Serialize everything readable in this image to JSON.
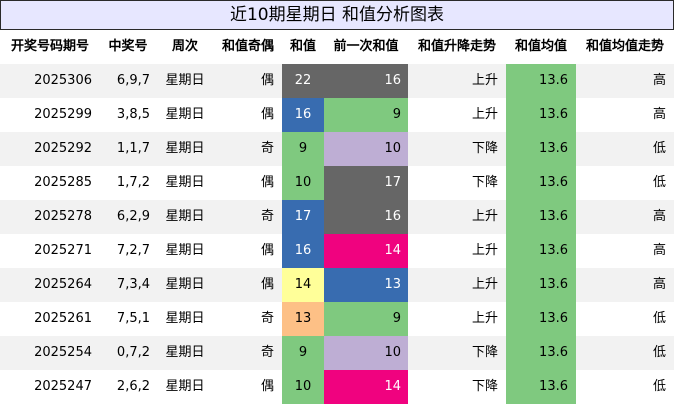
{
  "title": "近10期星期日 和值分析图表",
  "headers": [
    "开奖号码期号",
    "中奖号",
    "周次",
    "和值奇偶",
    "和值",
    "前一次和值",
    "和值升降走势",
    "和值均值",
    "和值均值走势"
  ],
  "rows": [
    {
      "issue": "2025306",
      "numbers": "6,9,7",
      "weekday": "星期日",
      "parity": "偶",
      "sum": "22",
      "sum_color": "#666666",
      "prev_sum": "16",
      "prev_color": "#666666",
      "trend": "上升",
      "avg": "13.6",
      "avg_trend": "高"
    },
    {
      "issue": "2025299",
      "numbers": "3,8,5",
      "weekday": "星期日",
      "parity": "偶",
      "sum": "16",
      "sum_color": "#386cb0",
      "prev_sum": "9",
      "prev_color": "#7fc97f",
      "trend": "上升",
      "avg": "13.6",
      "avg_trend": "高"
    },
    {
      "issue": "2025292",
      "numbers": "1,1,7",
      "weekday": "星期日",
      "parity": "奇",
      "sum": "9",
      "sum_color": "#7fc97f",
      "prev_sum": "10",
      "prev_color": "#beaed4",
      "trend": "下降",
      "avg": "13.6",
      "avg_trend": "低"
    },
    {
      "issue": "2025285",
      "numbers": "1,7,2",
      "weekday": "星期日",
      "parity": "偶",
      "sum": "10",
      "sum_color": "#7fc97f",
      "prev_sum": "17",
      "prev_color": "#666666",
      "trend": "下降",
      "avg": "13.6",
      "avg_trend": "低"
    },
    {
      "issue": "2025278",
      "numbers": "6,2,9",
      "weekday": "星期日",
      "parity": "奇",
      "sum": "17",
      "sum_color": "#386cb0",
      "prev_sum": "16",
      "prev_color": "#666666",
      "trend": "上升",
      "avg": "13.6",
      "avg_trend": "高"
    },
    {
      "issue": "2025271",
      "numbers": "7,2,7",
      "weekday": "星期日",
      "parity": "偶",
      "sum": "16",
      "sum_color": "#386cb0",
      "prev_sum": "14",
      "prev_color": "#f0027f",
      "trend": "上升",
      "avg": "13.6",
      "avg_trend": "高"
    },
    {
      "issue": "2025264",
      "numbers": "7,3,4",
      "weekday": "星期日",
      "parity": "偶",
      "sum": "14",
      "sum_color": "#ffff99",
      "prev_sum": "13",
      "prev_color": "#386cb0",
      "trend": "上升",
      "avg": "13.6",
      "avg_trend": "高"
    },
    {
      "issue": "2025261",
      "numbers": "7,5,1",
      "weekday": "星期日",
      "parity": "奇",
      "sum": "13",
      "sum_color": "#fdc086",
      "prev_sum": "9",
      "prev_color": "#7fc97f",
      "trend": "上升",
      "avg": "13.6",
      "avg_trend": "低"
    },
    {
      "issue": "2025254",
      "numbers": "0,7,2",
      "weekday": "星期日",
      "parity": "奇",
      "sum": "9",
      "sum_color": "#7fc97f",
      "prev_sum": "10",
      "prev_color": "#beaed4",
      "trend": "下降",
      "avg": "13.6",
      "avg_trend": "低"
    },
    {
      "issue": "2025247",
      "numbers": "2,6,2",
      "weekday": "星期日",
      "parity": "偶",
      "sum": "10",
      "sum_color": "#7fc97f",
      "prev_sum": "14",
      "prev_color": "#f0027f",
      "trend": "下降",
      "avg": "13.6",
      "avg_trend": "低"
    }
  ],
  "avg_color": "#7fc97f"
}
